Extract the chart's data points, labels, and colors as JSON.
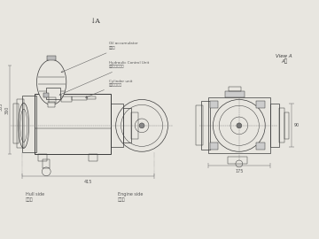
{
  "bg_color": "#e8e6e0",
  "line_color": "#3a3a3a",
  "dim_color": "#555555",
  "labels": {
    "oil_accumulator": "Oil accumulator\n蓄能器",
    "hydraulic_control": "Hydraulic Control Unit\n液压控制模块化",
    "cylinder_unit": "Cylinder unit\n缸缸总成单元",
    "hull_side": "Hull side\n船体侧",
    "engine_side": "Engine side\n主机侧",
    "view_a": "View A\nA向",
    "arrow_a": "↓A",
    "dim_415": "415",
    "dim_175": "175",
    "dim_360": "360",
    "dim_305": "305",
    "dim_90": "90"
  }
}
